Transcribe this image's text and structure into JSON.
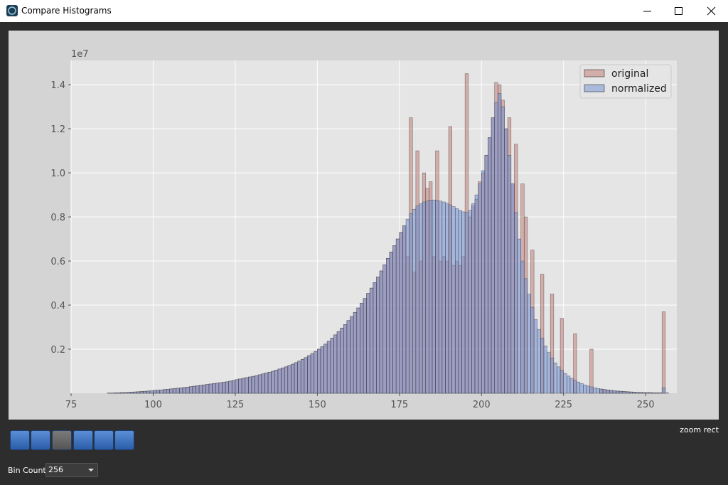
{
  "window": {
    "title": "Compare Histograms"
  },
  "chart_data": {
    "type": "histogram",
    "bins": [
      86,
      87,
      88,
      89,
      90,
      91,
      92,
      93,
      94,
      95,
      96,
      97,
      98,
      99,
      100,
      101,
      102,
      103,
      104,
      105,
      106,
      107,
      108,
      109,
      110,
      111,
      112,
      113,
      114,
      115,
      116,
      117,
      118,
      119,
      120,
      121,
      122,
      123,
      124,
      125,
      126,
      127,
      128,
      129,
      130,
      131,
      132,
      133,
      134,
      135,
      136,
      137,
      138,
      139,
      140,
      141,
      142,
      143,
      144,
      145,
      146,
      147,
      148,
      149,
      150,
      151,
      152,
      153,
      154,
      155,
      156,
      157,
      158,
      159,
      160,
      161,
      162,
      163,
      164,
      165,
      166,
      167,
      168,
      169,
      170,
      171,
      172,
      173,
      174,
      175,
      176,
      177,
      178,
      179,
      180,
      181,
      182,
      183,
      184,
      185,
      186,
      187,
      188,
      189,
      190,
      191,
      192,
      193,
      194,
      195,
      196,
      197,
      198,
      199,
      200,
      201,
      202,
      203,
      204,
      205,
      206,
      207,
      208,
      209,
      210,
      211,
      212,
      213,
      214,
      215,
      216,
      217,
      218,
      219,
      220,
      221,
      222,
      223,
      224,
      225,
      226,
      227,
      228,
      229,
      230,
      231,
      232,
      233,
      234,
      235,
      236,
      237,
      238,
      239,
      240,
      241,
      242,
      243,
      244,
      245,
      246,
      247,
      248,
      249,
      250,
      251,
      252,
      253,
      254,
      255,
      256,
      257
    ],
    "series": [
      {
        "name": "original",
        "color": "#c0766d",
        "values": [
          0.001,
          0.001,
          0.002,
          0.002,
          0.003,
          0.003,
          0.004,
          0.005,
          0.006,
          0.007,
          0.008,
          0.009,
          0.01,
          0.011,
          0.013,
          0.014,
          0.015,
          0.017,
          0.018,
          0.02,
          0.021,
          0.023,
          0.024,
          0.026,
          0.028,
          0.03,
          0.032,
          0.034,
          0.036,
          0.038,
          0.04,
          0.042,
          0.044,
          0.046,
          0.048,
          0.05,
          0.052,
          0.055,
          0.058,
          0.062,
          0.065,
          0.068,
          0.071,
          0.074,
          0.077,
          0.08,
          0.084,
          0.088,
          0.092,
          0.096,
          0.1,
          0.105,
          0.11,
          0.115,
          0.12,
          0.126,
          0.132,
          0.139,
          0.146,
          0.154,
          0.162,
          0.171,
          0.18,
          0.19,
          0.2,
          0.211,
          0.223,
          0.236,
          0.25,
          0.265,
          0.28,
          0.296,
          0.312,
          0.33,
          0.348,
          0.367,
          0.387,
          0.408,
          0.43,
          0.453,
          0.477,
          0.502,
          0.528,
          0.555,
          0.583,
          0.612,
          0.641,
          0.67,
          0.7,
          0.73,
          0.76,
          0.62,
          1.25,
          0.55,
          1.1,
          0.6,
          1.0,
          0.93,
          0.96,
          0.62,
          1.1,
          0.6,
          0.62,
          0.6,
          1.21,
          0.58,
          0.6,
          0.58,
          0.62,
          1.45,
          0.8,
          0.85,
          0.88,
          0.96,
          1.0,
          1.08,
          1.16,
          1.25,
          1.41,
          1.4,
          1.33,
          1.2,
          1.25,
          0.95,
          1.13,
          0,
          0.95,
          0.8,
          0,
          0.65,
          0,
          0,
          0.54,
          0,
          0,
          0.45,
          0,
          0,
          0.34,
          0,
          0,
          0,
          0.27,
          0,
          0,
          0,
          0,
          0.2,
          0,
          0,
          0.019,
          0.017,
          0.015,
          0.013,
          0.011,
          0.01,
          0.009,
          0.008,
          0.007,
          0.006,
          0.005,
          0.004,
          0.004,
          0.003,
          0.003,
          0.003,
          0.002,
          0.002,
          0.002,
          0.37,
          0
        ]
      },
      {
        "name": "normalized",
        "color": "#6f8fd6",
        "values": [
          0.001,
          0.001,
          0.002,
          0.002,
          0.003,
          0.003,
          0.004,
          0.005,
          0.006,
          0.007,
          0.008,
          0.009,
          0.01,
          0.011,
          0.013,
          0.014,
          0.015,
          0.017,
          0.018,
          0.02,
          0.021,
          0.023,
          0.024,
          0.026,
          0.028,
          0.03,
          0.032,
          0.034,
          0.036,
          0.038,
          0.04,
          0.042,
          0.044,
          0.046,
          0.048,
          0.05,
          0.052,
          0.055,
          0.058,
          0.062,
          0.065,
          0.068,
          0.071,
          0.074,
          0.077,
          0.08,
          0.084,
          0.088,
          0.092,
          0.096,
          0.1,
          0.105,
          0.11,
          0.115,
          0.12,
          0.126,
          0.132,
          0.139,
          0.146,
          0.154,
          0.162,
          0.171,
          0.18,
          0.19,
          0.2,
          0.211,
          0.223,
          0.236,
          0.25,
          0.265,
          0.28,
          0.296,
          0.312,
          0.33,
          0.348,
          0.367,
          0.387,
          0.408,
          0.43,
          0.453,
          0.477,
          0.502,
          0.528,
          0.555,
          0.583,
          0.612,
          0.641,
          0.67,
          0.7,
          0.73,
          0.76,
          0.79,
          0.815,
          0.835,
          0.85,
          0.86,
          0.868,
          0.873,
          0.876,
          0.877,
          0.875,
          0.872,
          0.868,
          0.862,
          0.855,
          0.847,
          0.838,
          0.83,
          0.823,
          0.82,
          0.83,
          0.86,
          0.9,
          0.95,
          1.01,
          1.08,
          1.16,
          1.25,
          1.32,
          1.36,
          1.3,
          1.2,
          1.08,
          0.95,
          0.82,
          0.7,
          0.6,
          0.52,
          0.45,
          0.39,
          0.335,
          0.29,
          0.25,
          0.215,
          0.185,
          0.16,
          0.138,
          0.12,
          0.104,
          0.09,
          0.078,
          0.068,
          0.059,
          0.051,
          0.044,
          0.038,
          0.033,
          0.029,
          0.025,
          0.022,
          0.019,
          0.017,
          0.015,
          0.013,
          0.011,
          0.01,
          0.009,
          0.008,
          0.007,
          0.006,
          0.005,
          0.004,
          0.004,
          0.003,
          0.003,
          0.003,
          0.002,
          0.002,
          0.002,
          0.025,
          0.002
        ]
      }
    ],
    "xlim": [
      75,
      259.5
    ],
    "ylim": [
      0,
      1.51
    ],
    "xticks": [
      75,
      100,
      125,
      150,
      175,
      200,
      225,
      250
    ],
    "yticks": [
      0.2,
      0.4,
      0.6,
      0.8,
      {
        "value": 1,
        "label": "1.0"
      },
      1.2,
      1.4
    ],
    "offset_label": "1e7",
    "grid": true,
    "legend": "upper right"
  },
  "toolbar": {
    "status": "zoom rect"
  },
  "controls": {
    "bin_count_label": "Bin Count",
    "bin_count": "256"
  }
}
